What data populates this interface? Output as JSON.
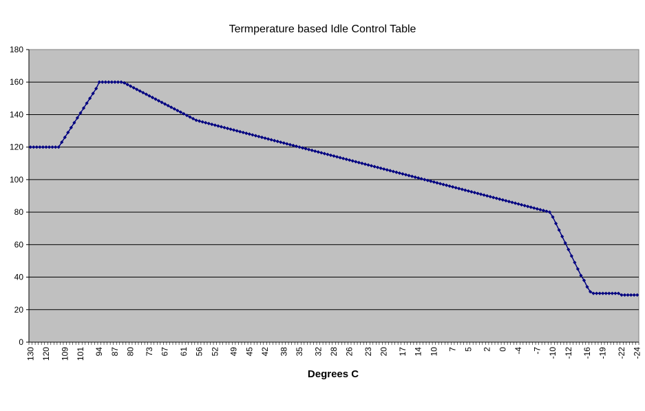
{
  "colors": {
    "plot_area": "#c0c0c0",
    "series": "#000080",
    "gridline": "#000000",
    "background": "#ffffff"
  },
  "chart_data": {
    "type": "line",
    "title": "Termperature based Idle Control Table",
    "xlabel": "Degrees C",
    "ylabel": "",
    "ylim": [
      0,
      180
    ],
    "y_ticks": [
      0,
      20,
      40,
      60,
      80,
      100,
      120,
      140,
      160,
      180
    ],
    "grid": true,
    "legend": "none",
    "x_tick_labels": [
      "130",
      "120",
      "109",
      "101",
      "94",
      "87",
      "80",
      "73",
      "67",
      "61",
      "56",
      "52",
      "49",
      "45",
      "42",
      "38",
      "35",
      "32",
      "28",
      "26",
      "23",
      "20",
      "17",
      "14",
      "10",
      "7",
      "5",
      "2",
      "0",
      "-4",
      "-7",
      "-10",
      "-12",
      "-16",
      "-19",
      "-22",
      "-24"
    ],
    "series": [
      {
        "marker": "diamond",
        "x_count": 209,
        "y": [
          120,
          120,
          120,
          120,
          120,
          120,
          120,
          120,
          120,
          120,
          123,
          126,
          129,
          132,
          135,
          138,
          141,
          144,
          147,
          150,
          153,
          156,
          160,
          160,
          160,
          160,
          160,
          160,
          160,
          160,
          159.5,
          158.5,
          157.5,
          156.5,
          155.5,
          154.5,
          153.5,
          152.5,
          151.5,
          150.5,
          149.5,
          148.5,
          147.5,
          146.5,
          145.5,
          144.5,
          143.5,
          142.5,
          141.5,
          140.5,
          139.5,
          138.5,
          137.5,
          136.5,
          136,
          135.5,
          135,
          134.5,
          134,
          133.5,
          133,
          132.5,
          132,
          131.5,
          131,
          130.5,
          130,
          129.5,
          129,
          128.5,
          128,
          127.5,
          127,
          126.5,
          126,
          125.5,
          125,
          124.5,
          124,
          123.5,
          123,
          122.5,
          122,
          121.5,
          121,
          120.5,
          120,
          119.5,
          119,
          118.5,
          118,
          117.5,
          117,
          116.5,
          116,
          115.5,
          115,
          114.5,
          114,
          113.5,
          113,
          112.5,
          112,
          111.5,
          111,
          110.5,
          110,
          109.5,
          109,
          108.5,
          108,
          107.5,
          107,
          106.5,
          106,
          105.5,
          105,
          104.5,
          104,
          103.5,
          103,
          102.5,
          102,
          101.5,
          101,
          100.5,
          100,
          99.5,
          99,
          98.5,
          98,
          97.5,
          97,
          96.5,
          96,
          95.5,
          95,
          94.5,
          94,
          93.5,
          93,
          92.5,
          92,
          91.5,
          91,
          90.5,
          90,
          89.5,
          89,
          88.5,
          88,
          87.5,
          87,
          86.5,
          86,
          85.5,
          85,
          84.5,
          84,
          83.5,
          83,
          82.5,
          82,
          81.5,
          81,
          80.5,
          80,
          77,
          73,
          69,
          65,
          61,
          57,
          53,
          49,
          45,
          41,
          38,
          34,
          31,
          30,
          30,
          30,
          30,
          30,
          30,
          30,
          30,
          30,
          29,
          29,
          29,
          29,
          29,
          29
        ]
      }
    ]
  }
}
